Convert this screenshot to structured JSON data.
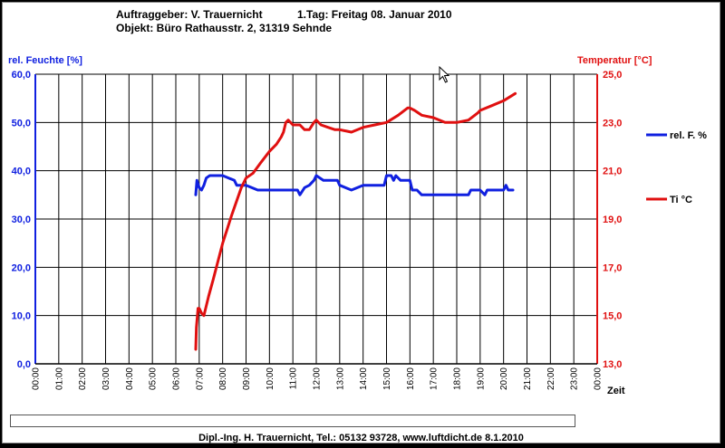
{
  "header": {
    "client_label": "Auftraggeber: V. Trauernicht",
    "object_label": "Objekt: Büro Rathausstr. 2, 31319 Sehnde",
    "day_label": "1.Tag: Freitag 08. Januar 2010"
  },
  "footer": "Dipl.-Ing. H. Trauernicht, Tel.: 05132 93728, www.luftdicht.de 8.1.2010",
  "colors": {
    "humidity": "#1020e0",
    "temperature": "#e01010",
    "grid": "#000000",
    "background": "#ffffff"
  },
  "chart_data": {
    "type": "line",
    "xlabel": "Zeit",
    "x_ticks": [
      "00:00",
      "01:00",
      "02:00",
      "03:00",
      "04:00",
      "05:00",
      "06:00",
      "07:00",
      "08:00",
      "09:00",
      "10:00",
      "11:00",
      "12:00",
      "13:00",
      "14:00",
      "15:00",
      "16:00",
      "17:00",
      "18:00",
      "19:00",
      "20:00",
      "21:00",
      "22:00",
      "23:00",
      "00:00"
    ],
    "xlim": [
      0,
      24
    ],
    "y_left": {
      "label": "rel. Feuchte [%]",
      "lim": [
        0,
        60
      ],
      "ticks": [
        "0,0",
        "10,0",
        "20,0",
        "30,0",
        "40,0",
        "50,0",
        "60,0"
      ]
    },
    "y_right": {
      "label": "Temperatur [°C]",
      "lim": [
        13,
        25
      ],
      "ticks": [
        "13,0",
        "15,0",
        "17,0",
        "19,0",
        "21,0",
        "23,0",
        "25,0"
      ]
    },
    "grid": true,
    "legend_position": "right",
    "series": [
      {
        "name": "rel. F. %",
        "axis": "left",
        "color": "#1020e0",
        "x": [
          6.85,
          6.9,
          7.0,
          7.1,
          7.2,
          7.3,
          7.45,
          7.6,
          8.0,
          8.5,
          8.6,
          9.0,
          9.5,
          10.0,
          10.5,
          11.0,
          11.2,
          11.3,
          11.5,
          11.7,
          11.9,
          12.0,
          12.3,
          12.6,
          12.9,
          13.0,
          13.5,
          14.0,
          14.5,
          14.9,
          15.0,
          15.2,
          15.3,
          15.4,
          15.6,
          16.0,
          16.1,
          16.3,
          16.5,
          17.0,
          18.0,
          18.5,
          18.6,
          19.0,
          19.2,
          19.3,
          19.5,
          19.9,
          20.0,
          20.1,
          20.2,
          20.4
        ],
        "y": [
          35,
          38,
          36.5,
          36,
          37,
          38.5,
          39,
          39,
          39,
          38,
          37,
          37,
          36,
          36,
          36,
          36,
          36,
          35,
          36.5,
          37,
          38,
          39,
          38,
          38,
          38,
          37,
          36,
          37,
          37,
          37,
          39,
          39,
          38,
          39,
          38,
          38,
          36,
          36,
          35,
          35,
          35,
          35,
          36,
          36,
          35,
          36,
          36,
          36,
          36,
          37,
          36,
          36
        ]
      },
      {
        "name": "Ti °C",
        "axis": "right",
        "color": "#e01010",
        "x": [
          6.85,
          6.88,
          6.95,
          7.0,
          7.1,
          7.2,
          7.4,
          7.6,
          8.0,
          8.4,
          8.8,
          9.0,
          9.3,
          9.6,
          10.0,
          10.3,
          10.5,
          10.6,
          10.7,
          10.8,
          11.0,
          11.3,
          11.5,
          11.7,
          11.9,
          12.0,
          12.2,
          12.5,
          12.8,
          13.0,
          13.5,
          14.0,
          14.5,
          15.0,
          15.5,
          15.9,
          16.0,
          16.2,
          16.5,
          17.0,
          17.5,
          18.0,
          18.5,
          18.9,
          19.0,
          19.5,
          20.0,
          20.5
        ],
        "y": [
          13.6,
          14.5,
          15.3,
          15.3,
          15.1,
          15.0,
          15.8,
          16.5,
          18.0,
          19.2,
          20.3,
          20.7,
          20.9,
          21.3,
          21.8,
          22.1,
          22.4,
          22.6,
          23.0,
          23.1,
          22.9,
          22.9,
          22.7,
          22.7,
          23.0,
          23.1,
          22.9,
          22.8,
          22.7,
          22.7,
          22.6,
          22.8,
          22.9,
          23.0,
          23.3,
          23.6,
          23.6,
          23.5,
          23.3,
          23.2,
          23.0,
          23.0,
          23.1,
          23.4,
          23.5,
          23.7,
          23.9,
          24.2
        ]
      }
    ]
  }
}
